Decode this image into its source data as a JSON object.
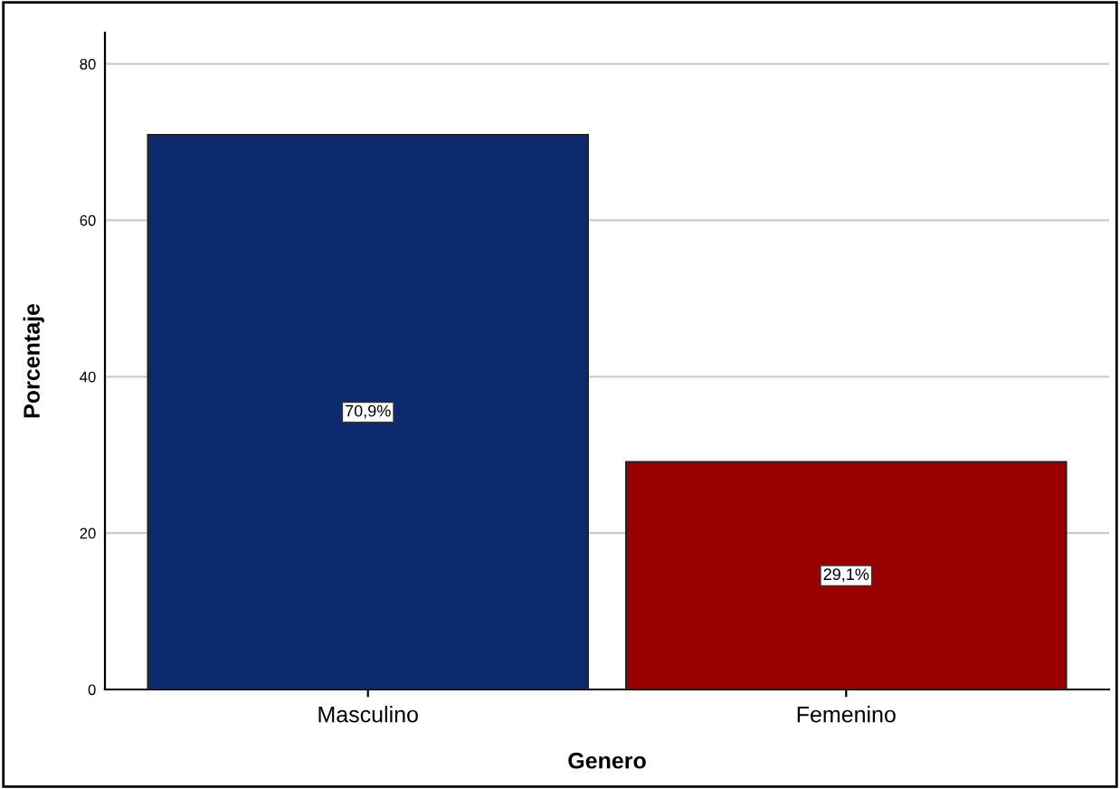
{
  "chart_data": {
    "type": "bar",
    "xlabel": "Genero",
    "ylabel": "Porcentaje",
    "categories": [
      "Masculino",
      "Femenino"
    ],
    "values": [
      70.9,
      29.1
    ],
    "colors": [
      "#0d2a6e",
      "#990000"
    ],
    "value_labels": [
      "70,9%",
      "29,1%"
    ],
    "ylim": [
      0,
      84
    ],
    "yticks": [
      0,
      20,
      40,
      60,
      80
    ],
    "grid": "y",
    "legend": false
  }
}
